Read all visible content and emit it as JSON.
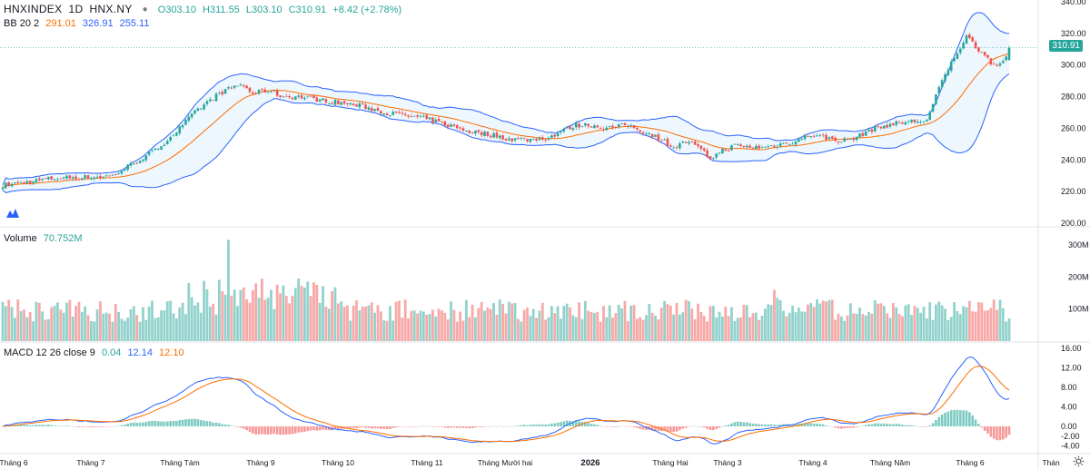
{
  "header": {
    "symbol": "HNXINDEX",
    "interval": "1D",
    "exchange": "HNX.NY",
    "open_label": "O303.10",
    "high_label": "H311.55",
    "low_label": "L303.10",
    "close_label": "C310.91",
    "change_label": "+8.42 (+2.78%)",
    "bb_label": "BB 20 2",
    "bb_mid": "291.01",
    "bb_upper": "326.91",
    "bb_lower": "255.11",
    "volume_label": "Volume",
    "volume_value": "70.752M",
    "macd_label": "MACD 12 26 close 9",
    "macd_hist": "0.04",
    "macd_line": "12.14",
    "macd_signal": "12.10",
    "last_price": "310.91"
  },
  "colors": {
    "up": "#26a69a",
    "down": "#ef5350",
    "bb_basis": "#ff6d00",
    "bb_band": "#2962ff",
    "bb_fill": "#2196f3",
    "macd_line": "#2962ff",
    "signal_line": "#ff6d00"
  },
  "chart_data": [
    {
      "type": "candlestick",
      "title": "HNXINDEX 1D HNX.NY",
      "ylim": [
        200,
        340
      ],
      "y_ticks": [
        "340.00",
        "320.00",
        "300.00",
        "280.00",
        "260.00",
        "240.00",
        "220.00",
        "200.00"
      ],
      "x_ticks": [
        "Tháng 6",
        "Tháng 7",
        "Tháng Tám",
        "Tháng 9",
        "Tháng 10",
        "Tháng 11",
        "Tháng Mười hai",
        "2026",
        "Tháng Hai",
        "Tháng 3",
        "Tháng 4",
        "Tháng Năm",
        "Tháng 6",
        "Thán"
      ],
      "close_path": [
        [
          0,
          224
        ],
        [
          8,
          226
        ],
        [
          15,
          228
        ],
        [
          22,
          229
        ],
        [
          29,
          229
        ],
        [
          36,
          230
        ],
        [
          43,
          238
        ],
        [
          50,
          246
        ],
        [
          57,
          258
        ],
        [
          64,
          272
        ],
        [
          71,
          282
        ],
        [
          78,
          288
        ],
        [
          82,
          282
        ],
        [
          87,
          284
        ],
        [
          92,
          280
        ],
        [
          97,
          280
        ],
        [
          104,
          278
        ],
        [
          111,
          276
        ],
        [
          118,
          274
        ],
        [
          125,
          270
        ],
        [
          132,
          268
        ],
        [
          139,
          266
        ],
        [
          146,
          262
        ],
        [
          153,
          258
        ],
        [
          160,
          256
        ],
        [
          167,
          253
        ],
        [
          174,
          253
        ],
        [
          179,
          254
        ],
        [
          183,
          258
        ],
        [
          188,
          262
        ],
        [
          193,
          262
        ],
        [
          198,
          260
        ],
        [
          205,
          262
        ],
        [
          210,
          258
        ],
        [
          215,
          254
        ],
        [
          220,
          248
        ],
        [
          225,
          252
        ],
        [
          229,
          246
        ],
        [
          232,
          241
        ],
        [
          236,
          246
        ],
        [
          240,
          249
        ],
        [
          245,
          248
        ],
        [
          250,
          248
        ],
        [
          255,
          250
        ],
        [
          260,
          252
        ],
        [
          265,
          256
        ],
        [
          270,
          254
        ],
        [
          275,
          252
        ],
        [
          280,
          254
        ],
        [
          283,
          258
        ],
        [
          290,
          262
        ],
        [
          296,
          264
        ],
        [
          303,
          265
        ],
        [
          308,
          290
        ],
        [
          312,
          305
        ],
        [
          316,
          318
        ],
        [
          319,
          312
        ],
        [
          322,
          306
        ],
        [
          325,
          300
        ],
        [
          328,
          302
        ],
        [
          330,
          310.91
        ]
      ],
      "last": 310.91,
      "bollinger": {
        "period": 20,
        "mult": 2,
        "basis_last": 291.01,
        "upper_last": 326.91,
        "lower_last": 255.11
      }
    },
    {
      "type": "bar",
      "title": "Volume",
      "ylim": [
        0,
        320
      ],
      "y_ticks": [
        "300M",
        "200M",
        "100M"
      ],
      "last": "70.752M"
    },
    {
      "type": "line",
      "title": "MACD 12 26 close 9",
      "ylim": [
        -6,
        17
      ],
      "y_ticks": [
        "16.00",
        "12.00",
        "8.00",
        "4.00",
        "0.00",
        "-2.00",
        "-4.00"
      ],
      "series": [
        {
          "name": "MACD",
          "last": 12.14
        },
        {
          "name": "Signal",
          "last": 12.1
        },
        {
          "name": "Histogram",
          "last": 0.04
        }
      ]
    }
  ]
}
